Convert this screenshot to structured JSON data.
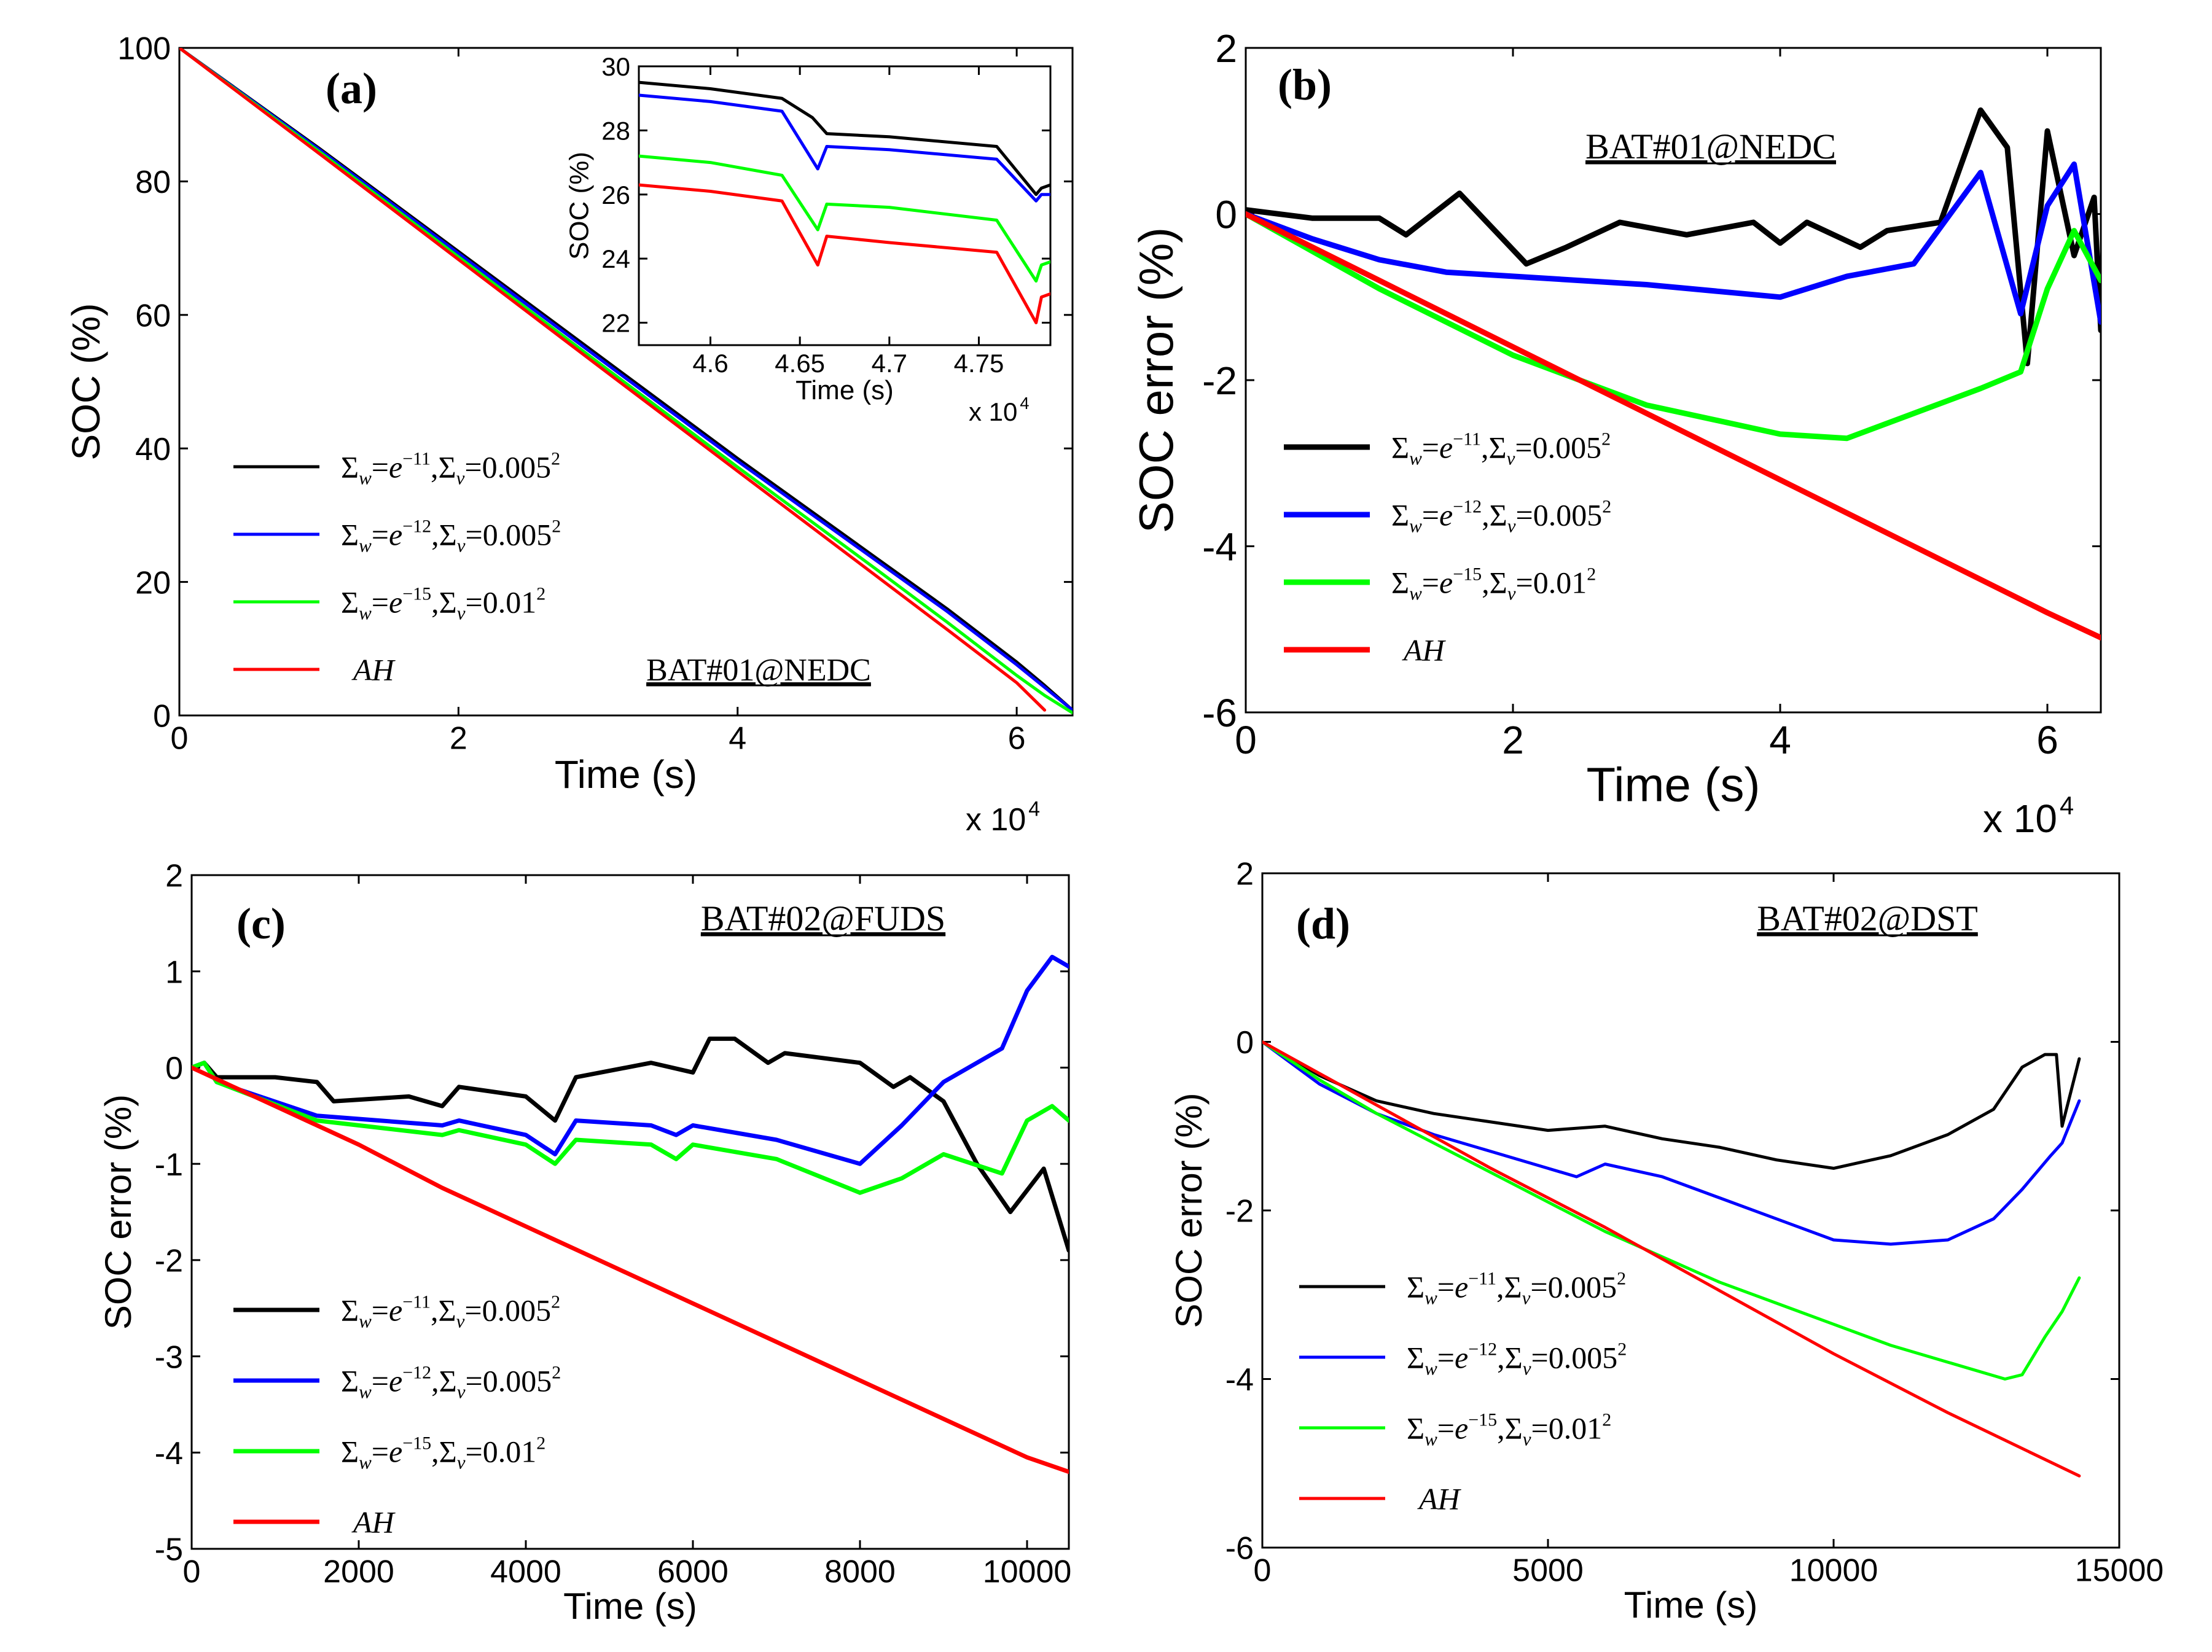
{
  "chart_data": [
    {
      "id": "a",
      "type": "line",
      "panel_label": "(a)",
      "annotation": "BAT#01@NEDC",
      "xlabel": "Time (s)",
      "ylabel": "SOC (%)",
      "xlim": [
        0,
        6.4
      ],
      "ylim": [
        0,
        100
      ],
      "xticks": [
        0,
        2,
        4,
        6
      ],
      "yticks": [
        0,
        20,
        40,
        60,
        80,
        100
      ],
      "x_multiplier_base": "x 10",
      "x_multiplier_exp": "4",
      "legend_position": "lower-left",
      "legend_entries": [
        {
          "w": "−11",
          "v": "0.005"
        },
        {
          "w": "−12",
          "v": "0.005"
        },
        {
          "w": "−15",
          "v": "0.01"
        },
        {
          "ah": "AH"
        }
      ],
      "series": [
        {
          "name": "Σw=e−11,Σv=0.005²",
          "color": "#000000",
          "x": [
            0,
            1,
            2,
            3,
            4,
            5,
            5.5,
            6,
            6.2,
            6.4
          ],
          "y": [
            100,
            85,
            69.5,
            54,
            38.5,
            23.5,
            16,
            8,
            4.5,
            0.8
          ]
        },
        {
          "name": "Σw=e−12,Σv=0.005²",
          "color": "#0000ff",
          "x": [
            0,
            1,
            2,
            3,
            4,
            5,
            5.5,
            6,
            6.2,
            6.4
          ],
          "y": [
            100,
            84.8,
            69.2,
            53.6,
            38.1,
            23.1,
            15.6,
            7.6,
            4.2,
            0.8
          ]
        },
        {
          "name": "Σw=e−15,Σv=0.01²",
          "color": "#00ff00",
          "x": [
            0,
            1,
            2,
            3,
            4,
            5,
            5.5,
            6,
            6.2,
            6.4
          ],
          "y": [
            100,
            84.5,
            68.7,
            52.9,
            37.2,
            21.8,
            14,
            6,
            3,
            0.4
          ]
        },
        {
          "name": "AH",
          "color": "#ff0000",
          "x": [
            0,
            1,
            2,
            3,
            4,
            5,
            5.5,
            6,
            6.2
          ],
          "y": [
            100,
            84.2,
            68.3,
            52.4,
            36.6,
            20.8,
            12.9,
            4.9,
            0.8
          ]
        }
      ],
      "inset": {
        "xlabel": "Time (s)",
        "ylabel": "SOC (%)",
        "xlim": [
          4.56,
          4.79
        ],
        "ylim": [
          21.3,
          30
        ],
        "xticks": [
          4.6,
          4.65,
          4.7,
          4.75
        ],
        "xtick_labels": [
          "4.6",
          "4.65",
          "4.7",
          "4.75"
        ],
        "yticks": [
          22,
          24,
          26,
          28,
          30
        ],
        "x_multiplier_base": "x 10",
        "x_multiplier_exp": "4",
        "series": [
          {
            "name": "Σw=e−11,Σv=0.005²",
            "color": "#000000",
            "x": [
              4.56,
              4.6,
              4.64,
              4.657,
              4.665,
              4.7,
              4.76,
              4.782,
              4.785,
              4.79
            ],
            "y": [
              29.5,
              29.3,
              29.0,
              28.4,
              27.9,
              27.8,
              27.5,
              26.0,
              26.2,
              26.3
            ]
          },
          {
            "name": "Σw=e−12,Σv=0.005²",
            "color": "#0000ff",
            "x": [
              4.56,
              4.6,
              4.64,
              4.66,
              4.665,
              4.7,
              4.76,
              4.782,
              4.785,
              4.79
            ],
            "y": [
              29.1,
              28.9,
              28.6,
              26.8,
              27.5,
              27.4,
              27.1,
              25.8,
              26.0,
              26.0
            ]
          },
          {
            "name": "Σw=e−15,Σv=0.01²",
            "color": "#00ff00",
            "x": [
              4.56,
              4.6,
              4.64,
              4.66,
              4.665,
              4.7,
              4.76,
              4.782,
              4.785,
              4.79
            ],
            "y": [
              27.2,
              27.0,
              26.6,
              24.9,
              25.7,
              25.6,
              25.2,
              23.3,
              23.8,
              23.9
            ]
          },
          {
            "name": "AH",
            "color": "#ff0000",
            "x": [
              4.56,
              4.6,
              4.64,
              4.66,
              4.665,
              4.7,
              4.76,
              4.782,
              4.785,
              4.79
            ],
            "y": [
              26.3,
              26.1,
              25.8,
              23.8,
              24.7,
              24.5,
              24.2,
              22.0,
              22.8,
              22.9
            ]
          }
        ]
      }
    },
    {
      "id": "b",
      "type": "line",
      "panel_label": "(b)",
      "annotation": "BAT#01@NEDC",
      "xlabel": "Time (s)",
      "ylabel": "SOC error (%)",
      "xlim": [
        0,
        6.4
      ],
      "ylim": [
        -6,
        2
      ],
      "xticks": [
        0,
        2,
        4,
        6
      ],
      "yticks": [
        -6,
        -4,
        -2,
        0,
        2
      ],
      "x_multiplier_base": "x 10",
      "x_multiplier_exp": "4",
      "legend_position": "center-left",
      "legend_entries": [
        {
          "w": "−11",
          "v": "0.005"
        },
        {
          "w": "−12",
          "v": "0.005"
        },
        {
          "w": "−15",
          "v": "0.01"
        },
        {
          "ah": "AH"
        }
      ],
      "series": [
        {
          "name": "Σw=e−11,Σv=0.005²",
          "color": "#000000",
          "x": [
            0,
            0.5,
            1,
            1.2,
            1.6,
            2.1,
            2.4,
            2.8,
            3.3,
            3.8,
            4.0,
            4.2,
            4.6,
            4.8,
            5.2,
            5.5,
            5.7,
            5.85,
            6.0,
            6.2,
            6.35,
            6.4
          ],
          "y": [
            0.05,
            -0.05,
            -0.05,
            -0.25,
            0.25,
            -0.6,
            -0.4,
            -0.1,
            -0.25,
            -0.1,
            -0.35,
            -0.1,
            -0.4,
            -0.2,
            -0.1,
            1.25,
            0.8,
            -1.8,
            1.0,
            -0.5,
            0.2,
            -1.4
          ]
        },
        {
          "name": "Σw=e−12,Σv=0.005²",
          "color": "#0000ff",
          "x": [
            0,
            0.5,
            1,
            1.5,
            2,
            3,
            4,
            4.5,
            5,
            5.5,
            5.8,
            6.0,
            6.2,
            6.4
          ],
          "y": [
            0.0,
            -0.3,
            -0.55,
            -0.7,
            -0.75,
            -0.85,
            -1.0,
            -0.75,
            -0.6,
            0.5,
            -1.2,
            0.1,
            0.6,
            -1.3
          ]
        },
        {
          "name": "Σw=e−15,Σv=0.01²",
          "color": "#00ff00",
          "x": [
            0,
            1,
            2,
            3,
            4,
            4.5,
            5,
            5.5,
            5.8,
            6.0,
            6.2,
            6.4
          ],
          "y": [
            0.0,
            -0.9,
            -1.7,
            -2.3,
            -2.65,
            -2.7,
            -2.4,
            -2.1,
            -1.9,
            -0.9,
            -0.2,
            -0.8
          ]
        },
        {
          "name": "AH",
          "color": "#ff0000",
          "x": [
            0,
            1,
            2,
            3,
            4,
            5,
            6,
            6.4
          ],
          "y": [
            0.0,
            -0.8,
            -1.6,
            -2.4,
            -3.2,
            -4.0,
            -4.8,
            -5.1
          ]
        }
      ]
    },
    {
      "id": "c",
      "type": "line",
      "panel_label": "(c)",
      "annotation": "BAT#02@FUDS",
      "xlabel": "Time (s)",
      "ylabel": "SOC error (%)",
      "xlim": [
        0,
        10500
      ],
      "ylim": [
        -5,
        2
      ],
      "xticks": [
        0,
        2000,
        4000,
        6000,
        8000,
        10000
      ],
      "yticks": [
        -5,
        -4,
        -3,
        -2,
        -1,
        0,
        1,
        2
      ],
      "legend_position": "lower-left",
      "legend_entries": [
        {
          "w": "−11",
          "v": "0.005"
        },
        {
          "w": "−12",
          "v": "0.005"
        },
        {
          "w": "−15",
          "v": "0.01"
        },
        {
          "ah": "AH"
        }
      ],
      "series": [
        {
          "name": "Σw=e−11,Σv=0.005²",
          "color": "#000000",
          "x": [
            0,
            150,
            300,
            1000,
            1500,
            1700,
            2600,
            3000,
            3200,
            4000,
            4350,
            4600,
            5500,
            6000,
            6200,
            6500,
            6900,
            7100,
            8000,
            8400,
            8600,
            9000,
            9400,
            9800,
            10200,
            10500
          ],
          "y": [
            0,
            0.05,
            -0.1,
            -0.1,
            -0.15,
            -0.35,
            -0.3,
            -0.4,
            -0.2,
            -0.3,
            -0.55,
            -0.1,
            0.05,
            -0.05,
            0.3,
            0.3,
            0.05,
            0.15,
            0.05,
            -0.2,
            -0.1,
            -0.35,
            -1.0,
            -1.5,
            -1.05,
            -1.9
          ]
        },
        {
          "name": "Σw=e−12,Σv=0.005²",
          "color": "#0000ff",
          "x": [
            0,
            150,
            300,
            1500,
            3000,
            3200,
            4000,
            4350,
            4600,
            5500,
            5800,
            6000,
            7000,
            8000,
            8500,
            9000,
            9700,
            10000,
            10300,
            10500
          ],
          "y": [
            0,
            0.05,
            -0.15,
            -0.5,
            -0.6,
            -0.55,
            -0.7,
            -0.9,
            -0.55,
            -0.6,
            -0.7,
            -0.6,
            -0.75,
            -1.0,
            -0.6,
            -0.15,
            0.2,
            0.8,
            1.15,
            1.05
          ]
        },
        {
          "name": "Σw=e−15,Σv=0.01²",
          "color": "#00ff00",
          "x": [
            0,
            150,
            300,
            1500,
            3000,
            3200,
            4000,
            4350,
            4600,
            5500,
            5800,
            6000,
            7000,
            8000,
            8500,
            9000,
            9700,
            10000,
            10300,
            10500
          ],
          "y": [
            0,
            0.05,
            -0.15,
            -0.55,
            -0.7,
            -0.65,
            -0.8,
            -1.0,
            -0.75,
            -0.8,
            -0.95,
            -0.8,
            -0.95,
            -1.3,
            -1.15,
            -0.9,
            -1.1,
            -0.55,
            -0.4,
            -0.55
          ]
        },
        {
          "name": "AH",
          "color": "#ff0000",
          "x": [
            0,
            1000,
            2000,
            3000,
            4000,
            5000,
            6000,
            7000,
            8000,
            9000,
            10000,
            10500
          ],
          "y": [
            0,
            -0.4,
            -0.8,
            -1.25,
            -1.65,
            -2.05,
            -2.45,
            -2.85,
            -3.25,
            -3.65,
            -4.05,
            -4.2
          ]
        }
      ]
    },
    {
      "id": "d",
      "type": "line",
      "panel_label": "(d)",
      "annotation": "BAT#02@DST",
      "xlabel": "Time (s)",
      "ylabel": "SOC error (%)",
      "xlim": [
        0,
        15000
      ],
      "ylim": [
        -6,
        2
      ],
      "xticks": [
        0,
        5000,
        10000,
        15000
      ],
      "yticks": [
        -6,
        -4,
        -2,
        0,
        2
      ],
      "legend_position": "lower-left",
      "legend_entries": [
        {
          "w": "−11",
          "v": "0.005"
        },
        {
          "w": "−12",
          "v": "0.005"
        },
        {
          "w": "−15",
          "v": "0.01"
        },
        {
          "ah": "AH"
        }
      ],
      "series": [
        {
          "name": "Σw=e−11,Σv=0.005²",
          "color": "#000000",
          "x": [
            0,
            1000,
            2000,
            3000,
            4000,
            5000,
            6000,
            7000,
            8000,
            9000,
            10000,
            11000,
            12000,
            12800,
            13300,
            13700,
            13900,
            14000,
            14300
          ],
          "y": [
            0,
            -0.4,
            -0.7,
            -0.85,
            -0.95,
            -1.05,
            -1.0,
            -1.15,
            -1.25,
            -1.4,
            -1.5,
            -1.35,
            -1.1,
            -0.8,
            -0.3,
            -0.15,
            -0.15,
            -1.0,
            -0.2
          ]
        },
        {
          "name": "Σw=e−12,Σv=0.005²",
          "color": "#0000ff",
          "x": [
            0,
            1000,
            2000,
            3000,
            4000,
            5000,
            5500,
            6000,
            7000,
            8000,
            9000,
            10000,
            11000,
            12000,
            12800,
            13300,
            13800,
            14000,
            14300
          ],
          "y": [
            0,
            -0.5,
            -0.85,
            -1.1,
            -1.3,
            -1.5,
            -1.6,
            -1.45,
            -1.6,
            -1.85,
            -2.1,
            -2.35,
            -2.4,
            -2.35,
            -2.1,
            -1.75,
            -1.35,
            -1.2,
            -0.7
          ]
        },
        {
          "name": "Σw=e−15,Σv=0.01²",
          "color": "#00ff00",
          "x": [
            0,
            1000,
            2000,
            3000,
            4000,
            5000,
            6000,
            7000,
            8000,
            9000,
            10000,
            11000,
            12000,
            13000,
            13300,
            13700,
            14000,
            14300
          ],
          "y": [
            0,
            -0.45,
            -0.85,
            -1.2,
            -1.55,
            -1.9,
            -2.25,
            -2.55,
            -2.85,
            -3.1,
            -3.35,
            -3.6,
            -3.8,
            -4.0,
            -3.95,
            -3.5,
            -3.2,
            -2.8
          ]
        },
        {
          "name": "AH",
          "color": "#ff0000",
          "x": [
            0,
            2000,
            4000,
            6000,
            8000,
            10000,
            12000,
            14300
          ],
          "y": [
            0,
            -0.75,
            -1.5,
            -2.2,
            -2.95,
            -3.7,
            -4.4,
            -5.15
          ]
        }
      ]
    }
  ]
}
